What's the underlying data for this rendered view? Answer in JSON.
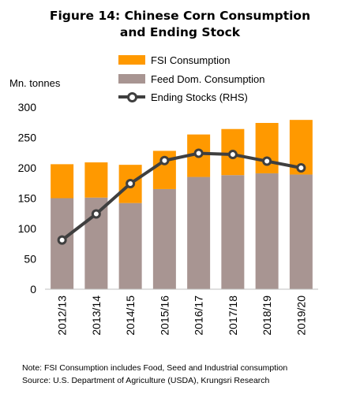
{
  "title_line1": "Figure 14: Chinese Corn Consumption",
  "title_line2": "and Ending Stock",
  "unit_label": "Mn. tonnes",
  "note": "Note: FSI Consumption includes Food, Seed and Industrial consumption",
  "source": "Source: U.S. Department of Agriculture (USDA), Krungsri Research",
  "colors": {
    "fsi": "#FF9900",
    "feed": "#A89592",
    "stocks": "#3F3F3F",
    "axis": "#BFBFBF"
  },
  "chart_data": {
    "type": "bar",
    "stacked": true,
    "categories": [
      "2012/13",
      "2013/14",
      "2014/15",
      "2015/16",
      "2016/17",
      "2017/18",
      "2018/19",
      "2019/20"
    ],
    "ylim": [
      0,
      300
    ],
    "yticks": [
      0,
      50,
      100,
      150,
      200,
      250,
      300
    ],
    "grid": false,
    "legend_position": "top",
    "series": [
      {
        "name": "FSI Consumption",
        "type": "bar",
        "values": [
          56,
          58,
          63,
          63,
          70,
          76,
          83,
          90
        ]
      },
      {
        "name": "Feed Dom. Consumption",
        "type": "bar",
        "values": [
          150,
          151,
          142,
          165,
          185,
          188,
          191,
          189
        ]
      },
      {
        "name": "Ending Stocks (RHS)",
        "type": "line",
        "values": [
          81,
          124,
          174,
          212,
          224,
          222,
          211,
          200
        ]
      }
    ]
  }
}
